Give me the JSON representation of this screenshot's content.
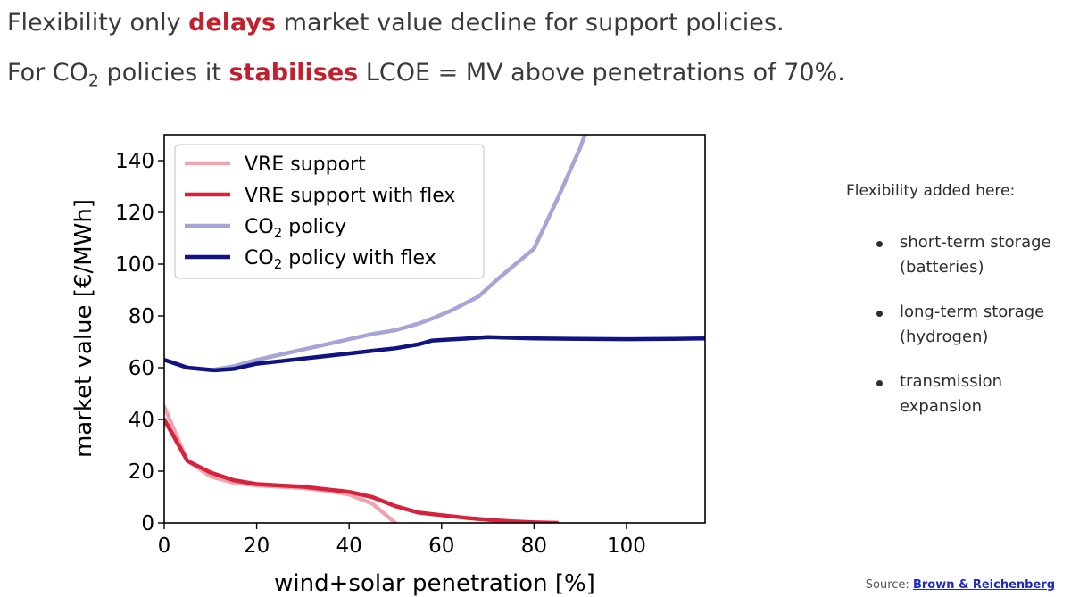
{
  "headline_1": {
    "before": "Flexibility only ",
    "emph": "delays",
    "after": " market value decline for support policies."
  },
  "headline_2": {
    "before": "For CO",
    "sub": "2",
    "middle": " policies it ",
    "emph": "stabilises",
    "after": " LCOE = MV above penetrations of 70%."
  },
  "sidebar": {
    "title": "Flexibility added here:",
    "items": [
      {
        "line1": "short-term storage",
        "line2": "(batteries)"
      },
      {
        "line1": "long-term storage",
        "line2": "(hydrogen)"
      },
      {
        "line1": "transmission",
        "line2": "expansion"
      }
    ]
  },
  "source": {
    "label": "Source:",
    "link_text": "Brown & Reichenberg"
  },
  "colors": {
    "emphasis": "#c2202e",
    "link": "#1d2bc4"
  },
  "chart_data": {
    "type": "line",
    "xlabel": "wind+solar penetration [%]",
    "ylabel": "market value [€/MWh]",
    "xlim": [
      0,
      117
    ],
    "ylim": [
      0,
      150
    ],
    "xticks": [
      0,
      20,
      40,
      60,
      80,
      100
    ],
    "yticks": [
      0,
      20,
      40,
      60,
      80,
      100,
      120,
      140
    ],
    "grid": false,
    "legend_position": "top-left",
    "series": [
      {
        "name": "VRE support",
        "name_sub": "",
        "color": "#f0a3ad",
        "x": [
          0,
          5,
          10,
          15,
          20,
          25,
          30,
          35,
          40,
          45,
          50
        ],
        "y": [
          45,
          24,
          18,
          15.5,
          14.5,
          14,
          13.5,
          12.5,
          11,
          7.5,
          0
        ]
      },
      {
        "name": "VRE support with flex",
        "name_sub": "",
        "color": "#d7223e",
        "x": [
          0,
          5,
          10,
          15,
          20,
          25,
          30,
          35,
          40,
          45,
          50,
          55,
          60,
          65,
          70,
          75,
          80,
          85
        ],
        "y": [
          40,
          24,
          19.5,
          16.5,
          15,
          14.5,
          14,
          13,
          12,
          10,
          6.5,
          4,
          3,
          2,
          1.2,
          0.6,
          0.2,
          0
        ]
      },
      {
        "name": "CO",
        "name_sub": "2",
        "name_after": " policy",
        "color": "#a7a5d6",
        "x": [
          0,
          2,
          5,
          10,
          15,
          20,
          25,
          30,
          35,
          40,
          45,
          50,
          55,
          58,
          62,
          68,
          72,
          80,
          85,
          90,
          91
        ],
        "y": [
          63,
          62,
          60,
          59,
          60.5,
          63,
          65,
          67,
          69,
          71,
          73,
          74.5,
          77,
          79,
          82,
          87.5,
          94,
          106,
          125,
          145,
          150
        ]
      },
      {
        "name": "CO",
        "name_sub": "2",
        "name_after": " policy with flex",
        "color": "#111382",
        "x": [
          0,
          5,
          11,
          15,
          20,
          25,
          30,
          35,
          40,
          45,
          50,
          55,
          58,
          65,
          70,
          80,
          85,
          90,
          100,
          110,
          117
        ],
        "y": [
          63,
          60,
          59,
          59.5,
          61.5,
          62.5,
          63.5,
          64.5,
          65.5,
          66.5,
          67.5,
          69,
          70.5,
          71.2,
          71.8,
          71.3,
          71.2,
          71.1,
          71,
          71.1,
          71.3
        ]
      }
    ]
  }
}
